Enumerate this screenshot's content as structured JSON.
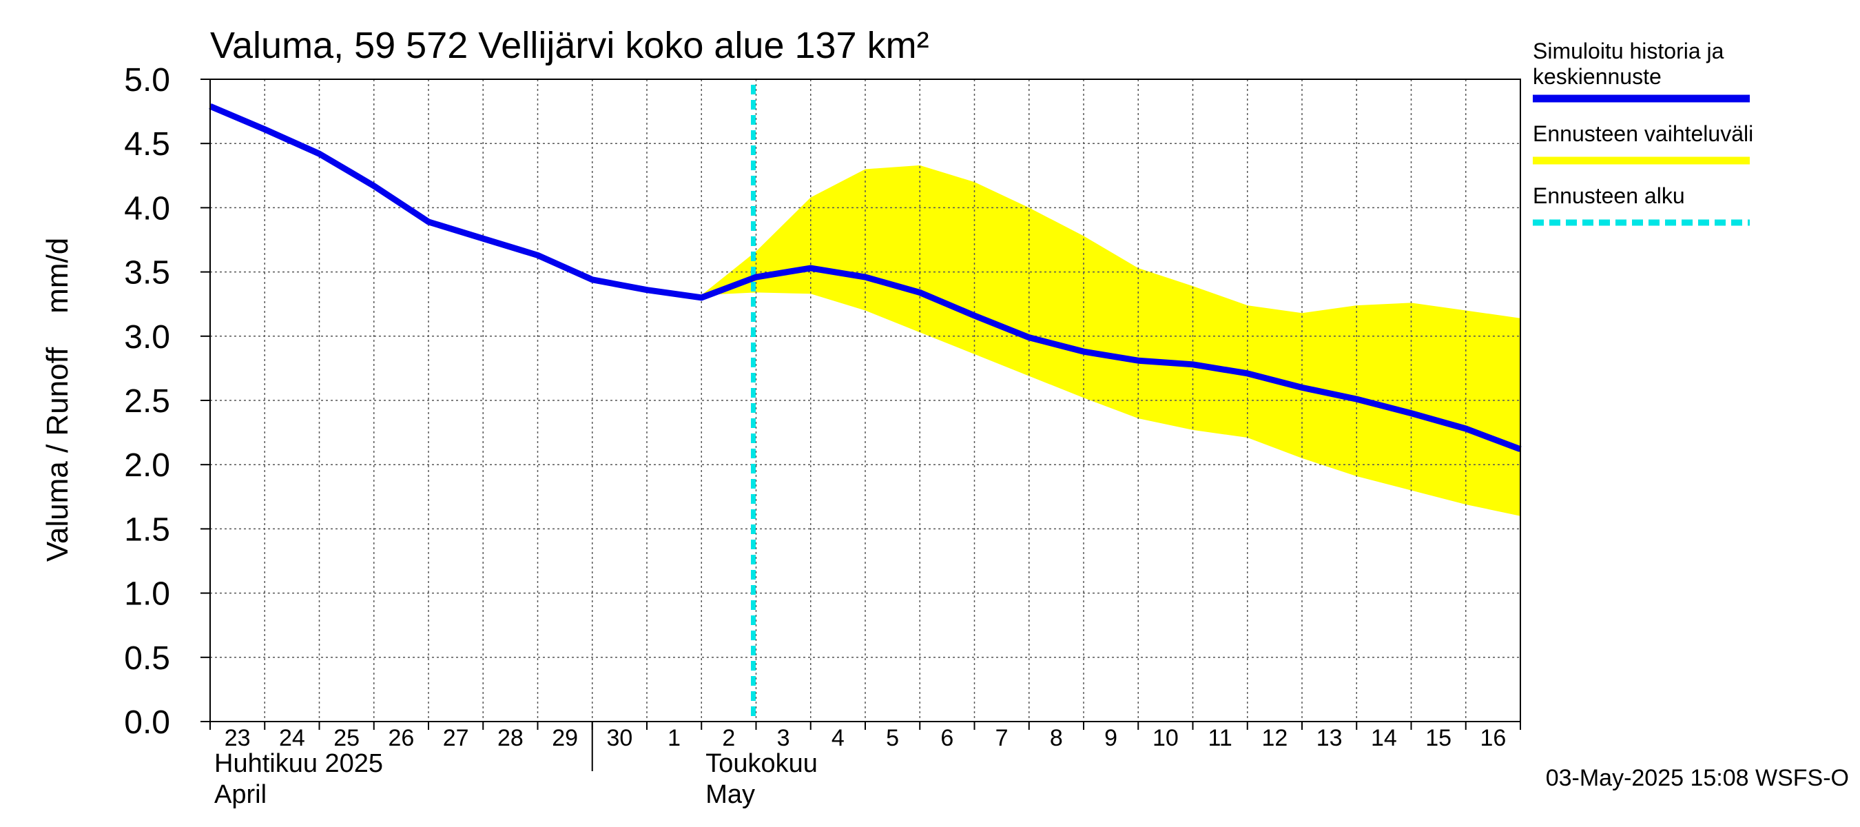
{
  "chart_data": {
    "type": "line",
    "title": "Valuma, 59 572 Vellijärvi koko alue 137 km²",
    "ylabel": "Valuma / Runoff    mm/d",
    "ylim": [
      0,
      5
    ],
    "yticks": [
      "0.0",
      "0.5",
      "1.0",
      "1.5",
      "2.0",
      "2.5",
      "3.0",
      "3.5",
      "4.0",
      "4.5",
      "5.0"
    ],
    "x_range": [
      "2025-04-23",
      "2025-05-16T24:00"
    ],
    "x_day_labels": [
      "23",
      "24",
      "25",
      "26",
      "27",
      "28",
      "29",
      "30",
      "1",
      "2",
      "3",
      "4",
      "5",
      "6",
      "7",
      "8",
      "9",
      "10",
      "11",
      "12",
      "13",
      "14",
      "15",
      "16"
    ],
    "month_labels": [
      {
        "line1": "Huhtikuu  2025",
        "line2": "April",
        "start": "2025-04-23"
      },
      {
        "line1": "Toukokuu",
        "line2": "May",
        "start": "2025-05-02"
      }
    ],
    "grid": true,
    "legend_position": "right",
    "forecast_start": "2025-05-03",
    "series": [
      {
        "name": "Simuloitu historia ja keskiennuste",
        "kind": "line",
        "color": "#0000ee",
        "points": [
          [
            "2025-04-23",
            4.79
          ],
          [
            "2025-04-24",
            4.61
          ],
          [
            "2025-04-25",
            4.42
          ],
          [
            "2025-04-26",
            4.17
          ],
          [
            "2025-04-27",
            3.89
          ],
          [
            "2025-04-28",
            3.76
          ],
          [
            "2025-04-29",
            3.63
          ],
          [
            "2025-04-30",
            3.44
          ],
          [
            "2025-05-01",
            3.36
          ],
          [
            "2025-05-02",
            3.3
          ],
          [
            "2025-05-03",
            3.46
          ],
          [
            "2025-05-04",
            3.53
          ],
          [
            "2025-05-05",
            3.46
          ],
          [
            "2025-05-06",
            3.34
          ],
          [
            "2025-05-07",
            3.16
          ],
          [
            "2025-05-08",
            2.99
          ],
          [
            "2025-05-09",
            2.88
          ],
          [
            "2025-05-10",
            2.81
          ],
          [
            "2025-05-11",
            2.78
          ],
          [
            "2025-05-12",
            2.71
          ],
          [
            "2025-05-13",
            2.6
          ],
          [
            "2025-05-14",
            2.51
          ],
          [
            "2025-05-15",
            2.4
          ],
          [
            "2025-05-16",
            2.28
          ],
          [
            "2025-05-16T24:00",
            2.12
          ]
        ]
      },
      {
        "name": "Ennusteen vaihteluväli",
        "kind": "band",
        "color": "#ffff00",
        "upper": [
          [
            "2025-05-02",
            3.32
          ],
          [
            "2025-05-03",
            3.66
          ],
          [
            "2025-05-04",
            4.08
          ],
          [
            "2025-05-05",
            4.3
          ],
          [
            "2025-05-06",
            4.33
          ],
          [
            "2025-05-07",
            4.2
          ],
          [
            "2025-05-08",
            4.0
          ],
          [
            "2025-05-09",
            3.78
          ],
          [
            "2025-05-10",
            3.53
          ],
          [
            "2025-05-11",
            3.39
          ],
          [
            "2025-05-12",
            3.24
          ],
          [
            "2025-05-13",
            3.18
          ],
          [
            "2025-05-14",
            3.24
          ],
          [
            "2025-05-15",
            3.26
          ],
          [
            "2025-05-16",
            3.2
          ],
          [
            "2025-05-16T24:00",
            3.14
          ]
        ],
        "lower": [
          [
            "2025-05-02",
            3.32
          ],
          [
            "2025-05-03",
            3.34
          ],
          [
            "2025-05-04",
            3.33
          ],
          [
            "2025-05-05",
            3.2
          ],
          [
            "2025-05-06",
            3.03
          ],
          [
            "2025-05-07",
            2.86
          ],
          [
            "2025-05-08",
            2.69
          ],
          [
            "2025-05-09",
            2.52
          ],
          [
            "2025-05-10",
            2.36
          ],
          [
            "2025-05-11",
            2.27
          ],
          [
            "2025-05-12",
            2.21
          ],
          [
            "2025-05-13",
            2.05
          ],
          [
            "2025-05-14",
            1.91
          ],
          [
            "2025-05-15",
            1.8
          ],
          [
            "2025-05-16",
            1.69
          ],
          [
            "2025-05-16T24:00",
            1.6
          ]
        ]
      },
      {
        "name": "Ennusteen alku",
        "kind": "vline",
        "color": "#00e5e5",
        "x": "2025-05-03"
      }
    ]
  },
  "legend": [
    {
      "line1": "Simuloitu historia ja",
      "line2": "keskiennuste",
      "color": "#0000ee",
      "style": "solid"
    },
    {
      "line1": "Ennusteen vaihteluväli",
      "line2": "",
      "color": "#ffff00",
      "style": "solid"
    },
    {
      "line1": "Ennusteen alku",
      "line2": "",
      "color": "#00e5e5",
      "style": "dashed"
    }
  ],
  "footer": "03-May-2025 15:08 WSFS-O"
}
